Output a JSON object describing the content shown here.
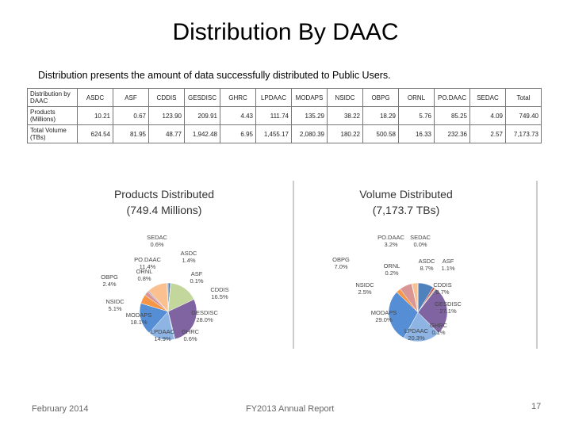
{
  "title": "Distribution By DAAC",
  "subtitle": "Distribution presents the amount of data successfully distributed to Public Users.",
  "table": {
    "header": [
      "Distribution by DAAC",
      "ASDC",
      "ASF",
      "CDDIS",
      "GESDISC",
      "GHRC",
      "LPDAAC",
      "MODAPS",
      "NSIDC",
      "OBPG",
      "ORNL",
      "PO.DAAC",
      "SEDAC",
      "Total"
    ],
    "rows": [
      [
        "Products (Millions)",
        "10.21",
        "0.67",
        "123.90",
        "209.91",
        "4.43",
        "111.74",
        "135.29",
        "38.22",
        "18.29",
        "5.76",
        "85.25",
        "4.09",
        "749.40"
      ],
      [
        "Total Volume (TBs)",
        "624.54",
        "81.95",
        "48.77",
        "1,942.48",
        "6.95",
        "1,455.17",
        "2,080.39",
        "180.22",
        "500.58",
        "16.33",
        "232.36",
        "2.57",
        "7,173.73"
      ]
    ]
  },
  "chart_data": [
    {
      "type": "pie",
      "title": "Products Distributed",
      "subtitle": "(749.4 Millions)",
      "categories": [
        "ASDC",
        "ASF",
        "CDDIS",
        "GESDISC",
        "GHRC",
        "LPDAAC",
        "MODAPS",
        "NSIDC",
        "OBPG",
        "ORNL",
        "PO.DAAC",
        "SEDAC"
      ],
      "values": [
        1.4,
        0.1,
        16.5,
        28.0,
        0.6,
        14.9,
        18.1,
        5.1,
        2.4,
        0.8,
        11.4,
        0.6
      ],
      "value_labels": [
        "1.4%",
        "0.1%",
        "16.5%",
        "28.0%",
        "0.6%",
        "14.9%",
        "18.1%",
        "5.1%",
        "2.4%",
        "0.8%",
        "11.4%",
        "0.6%"
      ],
      "colors": [
        "#4f81bd",
        "#c0504d",
        "#c3d69b",
        "#8064a2",
        "#4bacc6",
        "#8eb4e3",
        "#558ed5",
        "#f79646",
        "#d99694",
        "#b3a2c7",
        "#fac090",
        "#95b3d7"
      ]
    },
    {
      "type": "pie",
      "title": "Volume Distributed",
      "subtitle": "(7,173.7 TBs)",
      "categories": [
        "ASDC",
        "ASF",
        "CDDIS",
        "GESDISC",
        "GHRC",
        "LPDAAC",
        "MODAPS",
        "NSIDC",
        "OBPG",
        "ORNL",
        "PO.DAAC",
        "SEDAC"
      ],
      "values": [
        8.7,
        1.1,
        0.7,
        27.1,
        0.1,
        20.3,
        29.0,
        2.5,
        7.0,
        0.2,
        3.2,
        0.0
      ],
      "value_labels": [
        "8.7%",
        "1.1%",
        "0.7%",
        "27.1%",
        "0.1%",
        "20.3%",
        "29.0%",
        "2.5%",
        "7.0%",
        "0.2%",
        "3.2%",
        "0.0%"
      ],
      "colors": [
        "#4f81bd",
        "#c0504d",
        "#c3d69b",
        "#8064a2",
        "#4bacc6",
        "#8eb4e3",
        "#558ed5",
        "#f79646",
        "#d99694",
        "#b3a2c7",
        "#fac090",
        "#95b3d7"
      ]
    }
  ],
  "footer": {
    "date": "February 2014",
    "report": "FY2013 Annual Report",
    "page": "17"
  }
}
